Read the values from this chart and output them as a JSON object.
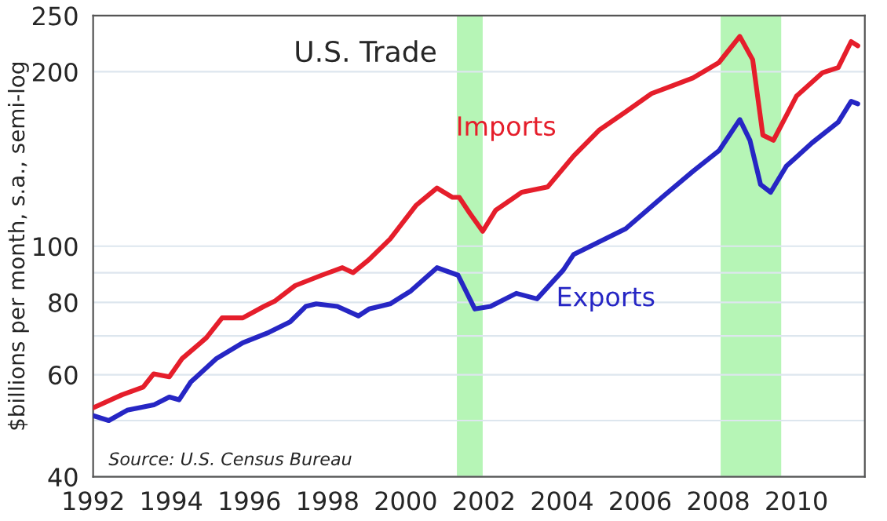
{
  "chart_data": {
    "type": "line",
    "title": "U.S. Trade",
    "ylabel": "$billions per month, s.a., semi-log",
    "annotations": [
      "Source: U.S. Census Bureau"
    ],
    "log": "y",
    "grid": "y",
    "legend": false,
    "xlim": [
      1992,
      2011.75
    ],
    "xticks": [
      1992,
      1994,
      1996,
      1998,
      2000,
      2002,
      2004,
      2006,
      2008,
      2010
    ],
    "ylim": [
      40,
      250
    ],
    "yticks": [
      40,
      {
        "value": 50,
        "label": null
      },
      60,
      {
        "value": 70,
        "label": null
      },
      80,
      {
        "value": 90,
        "label": null
      },
      100,
      200,
      250
    ],
    "bands": [
      {
        "axis": "x",
        "from": 2001.31,
        "to": 2001.97,
        "color": "#b6f5b6"
      },
      {
        "axis": "x",
        "from": 2008.06,
        "to": 2009.61,
        "color": "#b6f5b6"
      }
    ],
    "series": [
      {
        "name": "Imports",
        "color": "#e51e2b",
        "x": [
          1992.0,
          1992.74,
          1993.28,
          1993.55,
          1993.95,
          1994.28,
          1994.9,
          1995.3,
          1995.83,
          1996.37,
          1996.64,
          1997.17,
          1997.85,
          1998.38,
          1998.65,
          1999.06,
          1999.6,
          2000.27,
          2000.8,
          2001.2,
          2001.37,
          2001.64,
          2001.97,
          2002.3,
          2002.97,
          2003.63,
          2004.3,
          2004.96,
          2005.63,
          2006.29,
          2006.82,
          2007.35,
          2008.02,
          2008.55,
          2008.88,
          2009.14,
          2009.41,
          2010.0,
          2010.67,
          2011.07,
          2011.4,
          2011.57
        ],
        "values": [
          52.6,
          55.4,
          57.1,
          60.2,
          59.5,
          64.0,
          69.5,
          75.2,
          75.2,
          78.7,
          80.3,
          85.5,
          89.1,
          91.8,
          90.0,
          94.8,
          102.9,
          117.7,
          126,
          121.4,
          121.4,
          114,
          106.1,
          115.3,
          123.9,
          126.5,
          143.2,
          158.8,
          170.6,
          183.4,
          189.2,
          195.1,
          207.6,
          230.2,
          209.8,
          155.5,
          152.3,
          181.5,
          199.3,
          203.4,
          225.5,
          221.8
        ]
      },
      {
        "name": "Exports",
        "color": "#2626c4",
        "x": [
          1992.0,
          1992.4,
          1992.87,
          1993.55,
          1993.95,
          1994.2,
          1994.5,
          1995.16,
          1995.83,
          1996.5,
          1997.04,
          1997.44,
          1997.71,
          1998.25,
          1998.79,
          1999.06,
          1999.6,
          2000.13,
          2000.8,
          2001.34,
          2001.77,
          2002.17,
          2002.83,
          2003.36,
          2004.03,
          2004.3,
          2004.83,
          2005.63,
          2006.56,
          2007.35,
          2008.02,
          2008.55,
          2008.81,
          2009.08,
          2009.34,
          2009.74,
          2010.4,
          2011.07,
          2011.4,
          2011.57
        ],
        "values": [
          51.0,
          50.0,
          52.1,
          53.2,
          54.9,
          54.3,
          58.3,
          64.0,
          68.1,
          71.0,
          74.0,
          78.7,
          79.5,
          78.7,
          75.8,
          77.9,
          79.5,
          83.7,
          91.8,
          89.1,
          77.9,
          78.7,
          82.9,
          81.1,
          90.9,
          96.8,
          100.8,
          107.2,
          121.4,
          134.6,
          146.2,
          165.4,
          152.3,
          127.8,
          123.9,
          137.4,
          150.8,
          163.7,
          177.8,
          176
        ]
      }
    ]
  }
}
